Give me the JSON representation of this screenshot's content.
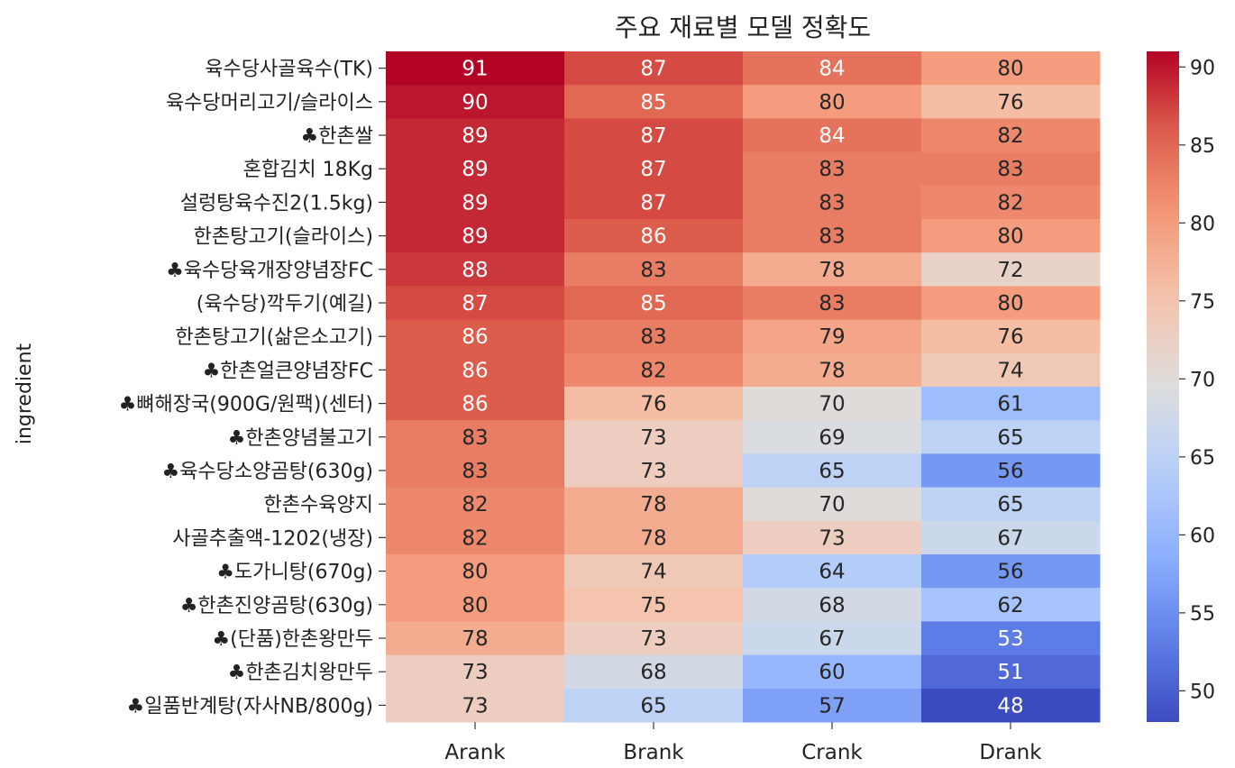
{
  "chart_data": {
    "type": "heatmap",
    "title": "주요 재료별 모델 정확도",
    "ylabel": "ingredient",
    "xlabel": "",
    "columns": [
      "Arank",
      "Brank",
      "Crank",
      "Drank"
    ],
    "rows": [
      "육수당사골육수(TK)",
      "육수당머리고기/슬라이스",
      "♣한촌쌀",
      "혼합김치 18Kg",
      "설렁탕육수진2(1.5kg)",
      "한촌탕고기(슬라이스)",
      "♣육수당육개장양념장FC",
      "(육수당)깍두기(예길)",
      "한촌탕고기(삶은소고기)",
      "♣한촌얼큰양념장FC",
      "♣뼈해장국(900G/원팩)(센터)",
      "♣한촌양념불고기",
      "♣육수당소양곰탕(630g)",
      "한촌수육양지",
      "사골추출액-1202(냉장)",
      "♣도가니탕(670g)",
      "♣한촌진양곰탕(630g)",
      "♣(단품)한촌왕만두",
      "♣한촌김치왕만두",
      "♣일품반계탕(자사NB/800g)"
    ],
    "values": [
      [
        91,
        87,
        84,
        80
      ],
      [
        90,
        85,
        80,
        76
      ],
      [
        89,
        87,
        84,
        82
      ],
      [
        89,
        87,
        83,
        83
      ],
      [
        89,
        87,
        83,
        82
      ],
      [
        89,
        86,
        83,
        80
      ],
      [
        88,
        83,
        78,
        72
      ],
      [
        87,
        85,
        83,
        80
      ],
      [
        86,
        83,
        79,
        76
      ],
      [
        86,
        82,
        78,
        74
      ],
      [
        86,
        76,
        70,
        61
      ],
      [
        83,
        73,
        69,
        65
      ],
      [
        83,
        73,
        65,
        56
      ],
      [
        82,
        78,
        70,
        65
      ],
      [
        82,
        78,
        73,
        67
      ],
      [
        80,
        74,
        64,
        56
      ],
      [
        80,
        75,
        68,
        62
      ],
      [
        78,
        73,
        67,
        53
      ],
      [
        73,
        68,
        60,
        51
      ],
      [
        73,
        65,
        57,
        48
      ]
    ],
    "colormap": "coolwarm",
    "vmin": 48,
    "vmax": 91,
    "colorbar_ticks": [
      50,
      55,
      60,
      65,
      70,
      75,
      80,
      85,
      90
    ]
  }
}
